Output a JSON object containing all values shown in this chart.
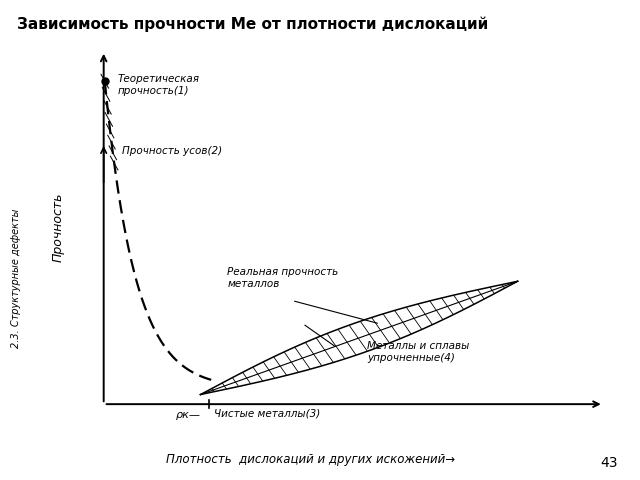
{
  "title": "Зависимость прочности Ме от плотности дислокаций",
  "sidebar_text": "2.3. Структурные дефекты",
  "xlabel": "Плотность  дислокаций и других искожений→",
  "ylabel": "Прочность",
  "background_color": "#ffffff",
  "slide_bg": "#dde8f0",
  "page_number": "43",
  "ann_theoretical": "Теоретическая\nпрочность(1)",
  "ann_whisker": "Прочность усов(2)",
  "ann_real": "Реальная прочность\nметаллов",
  "ann_pure": "Чистые металлы(3)",
  "ann_alloys": "Металлы и сплавы\nупрочненные(4)",
  "rho_k": "ρк—"
}
